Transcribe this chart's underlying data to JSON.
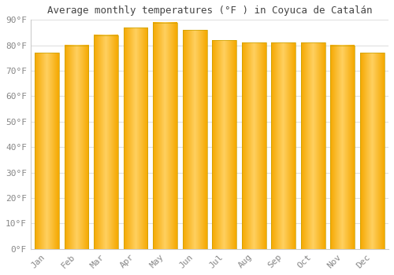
{
  "title": "Average monthly temperatures (°F ) in Coyuca de Catalán",
  "months": [
    "Jan",
    "Feb",
    "Mar",
    "Apr",
    "May",
    "Jun",
    "Jul",
    "Aug",
    "Sep",
    "Oct",
    "Nov",
    "Dec"
  ],
  "values": [
    77,
    80,
    84,
    87,
    89,
    86,
    82,
    81,
    81,
    81,
    80,
    77
  ],
  "bar_color_left": "#F5A800",
  "bar_color_mid": "#FFD060",
  "bar_color_right": "#F5A800",
  "background_color": "#ffffff",
  "plot_bg_color": "#ffffff",
  "ylim": [
    0,
    90
  ],
  "yticks": [
    0,
    10,
    20,
    30,
    40,
    50,
    60,
    70,
    80,
    90
  ],
  "ytick_labels": [
    "0°F",
    "10°F",
    "20°F",
    "30°F",
    "40°F",
    "50°F",
    "60°F",
    "70°F",
    "80°F",
    "90°F"
  ],
  "title_fontsize": 9,
  "tick_fontsize": 8,
  "grid_color": "#e0e0e0",
  "bar_width": 0.82,
  "bar_gap_color": "#cccccc"
}
